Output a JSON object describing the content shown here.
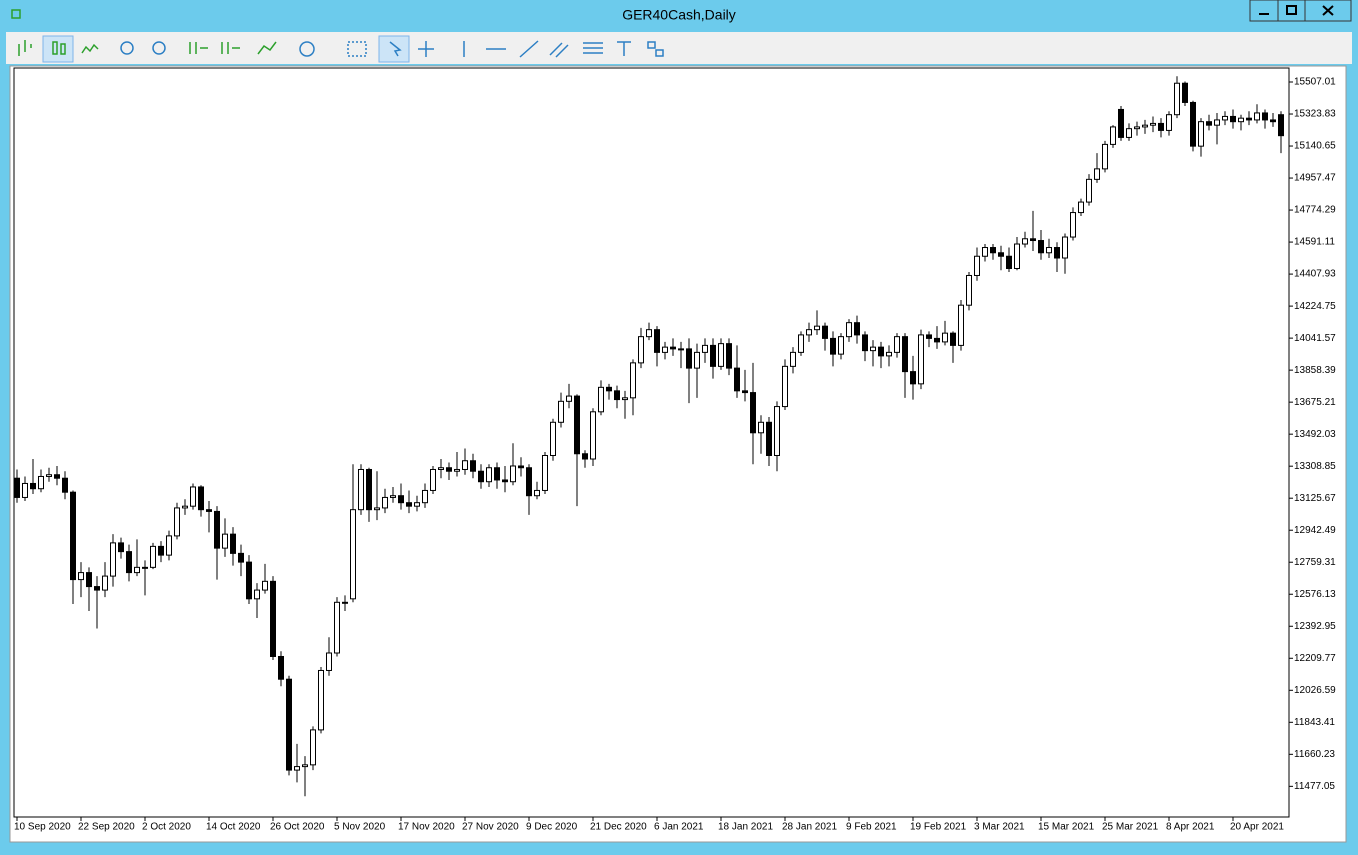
{
  "window": {
    "title": "GER40Cash,Daily"
  },
  "chart_data": {
    "type": "candlestick",
    "categories": [
      "10 Sep 2020",
      null,
      null,
      null,
      null,
      null,
      null,
      null,
      "22 Sep 2020",
      null,
      null,
      null,
      null,
      null,
      null,
      null,
      "2 Oct 2020",
      null,
      null,
      null,
      null,
      null,
      null,
      null,
      "14 Oct 2020",
      null,
      null,
      null,
      null,
      null,
      null,
      null,
      "26 Oct 2020",
      null,
      null,
      null,
      null,
      null,
      null,
      null,
      "5 Nov 2020",
      null,
      null,
      null,
      null,
      null,
      null,
      null,
      "17 Nov 2020",
      null,
      null,
      null,
      null,
      null,
      null,
      null,
      "27 Nov 2020",
      null,
      null,
      null,
      null,
      null,
      null,
      null,
      "9 Dec 2020",
      null,
      null,
      null,
      null,
      null,
      null,
      null,
      "21 Dec 2020",
      null,
      null,
      null,
      null,
      null,
      null,
      null,
      "6 Jan 2021",
      null,
      null,
      null,
      null,
      null,
      null,
      null,
      "18 Jan 2021",
      null,
      null,
      null,
      null,
      null,
      null,
      null,
      "28 Jan 2021",
      null,
      null,
      null,
      null,
      null,
      null,
      null,
      "9 Feb 2021",
      null,
      null,
      null,
      null,
      null,
      null,
      null,
      "19 Feb 2021",
      null,
      null,
      null,
      null,
      null,
      null,
      null,
      "3 Mar 2021",
      null,
      null,
      null,
      null,
      null,
      null,
      null,
      "15 Mar 2021",
      null,
      null,
      null,
      null,
      null,
      null,
      null,
      "25 Mar 2021",
      null,
      null,
      null,
      null,
      null,
      null,
      null,
      "8 Apr 2021",
      null,
      null,
      null,
      null,
      null,
      null,
      null,
      "20 Apr 2021",
      null,
      null,
      null,
      null,
      null,
      null
    ],
    "open": [
      13240,
      13130,
      13210,
      13180,
      13250,
      13260,
      13240,
      13160,
      12660,
      12700,
      12620,
      12600,
      12680,
      12870,
      12820,
      12700,
      12730,
      12730,
      12850,
      12800,
      12910,
      13070,
      13080,
      13190,
      13060,
      13050,
      12840,
      12920,
      12810,
      12760,
      12550,
      12600,
      12650,
      12220,
      12090,
      11570,
      11590,
      11600,
      11800,
      12140,
      12240,
      12530,
      12550,
      13060,
      13290,
      13060,
      13070,
      13130,
      13140,
      13100,
      13080,
      13100,
      13170,
      13290,
      13300,
      13280,
      13290,
      13340,
      13280,
      13220,
      13300,
      13230,
      13220,
      13310,
      13300,
      13140,
      13170,
      13370,
      13560,
      13680,
      13710,
      13380,
      13350,
      13620,
      13760,
      13740,
      13690,
      13700,
      13900,
      14050,
      14090,
      13960,
      13990,
      13980,
      13980,
      13870,
      13960,
      14000,
      13880,
      14010,
      13870,
      13740,
      13730,
      13500,
      13560,
      13370,
      13650,
      13880,
      13960,
      14060,
      14090,
      14110,
      14040,
      13950,
      14050,
      14130,
      14060,
      13970,
      13990,
      13940,
      13960,
      14050,
      13850,
      13780,
      14060,
      14040,
      14020,
      14070,
      14000,
      14230,
      14400,
      14510,
      14560,
      14530,
      14510,
      14440,
      14580,
      14610,
      14600,
      14530,
      14560,
      14500,
      14620,
      14760,
      14820,
      14950,
      15010,
      15150,
      15350,
      15190,
      15240,
      15250,
      15260,
      15270,
      15230,
      15320,
      15500,
      15390,
      15140,
      15280,
      15260,
      15290,
      15310,
      15280,
      15300,
      15290,
      15330,
      15290,
      15320
    ],
    "high": [
      13290,
      13250,
      13350,
      13290,
      13300,
      13310,
      13280,
      13170,
      12760,
      12730,
      12680,
      12760,
      12920,
      12900,
      12860,
      12890,
      12770,
      12870,
      12880,
      12940,
      13100,
      13120,
      13210,
      13200,
      13110,
      13080,
      13010,
      12960,
      12860,
      12800,
      12640,
      12750,
      12680,
      12250,
      12110,
      11720,
      11650,
      11820,
      12160,
      12330,
      12560,
      12570,
      13320,
      13320,
      13300,
      13280,
      13180,
      13190,
      13210,
      13170,
      13140,
      13210,
      13310,
      13350,
      13330,
      13390,
      13410,
      13380,
      13320,
      13320,
      13330,
      13310,
      13440,
      13360,
      13320,
      13220,
      13390,
      13580,
      13730,
      13780,
      13720,
      13400,
      13640,
      13800,
      13780,
      13770,
      13740,
      13920,
      14100,
      14130,
      14110,
      14020,
      14040,
      14020,
      14040,
      14010,
      14040,
      14040,
      14040,
      14040,
      14000,
      13860,
      13900,
      13600,
      13590,
      13680,
      13920,
      13990,
      14080,
      14130,
      14200,
      14130,
      14080,
      14070,
      14150,
      14170,
      14080,
      14030,
      14020,
      14000,
      14070,
      14070,
      13940,
      14090,
      14080,
      14110,
      14140,
      14080,
      14260,
      14420,
      14560,
      14580,
      14580,
      14570,
      14560,
      14620,
      14650,
      14770,
      14660,
      14610,
      14590,
      14640,
      14790,
      14840,
      14980,
      15100,
      15170,
      15260,
      15370,
      15270,
      15280,
      15290,
      15310,
      15300,
      15340,
      15540,
      15510,
      15400,
      15300,
      15320,
      15330,
      15340,
      15350,
      15320,
      15340,
      15380,
      15350,
      15330,
      15340
    ],
    "low": [
      13100,
      13110,
      13150,
      13160,
      13220,
      13200,
      13120,
      12520,
      12560,
      12480,
      12380,
      12560,
      12620,
      12780,
      12650,
      12680,
      12570,
      12720,
      12760,
      12770,
      12890,
      13030,
      13060,
      13020,
      12930,
      12660,
      12790,
      12740,
      12680,
      12520,
      12440,
      12580,
      12200,
      12050,
      11540,
      11500,
      11420,
      11570,
      11780,
      12110,
      12220,
      12480,
      12530,
      13030,
      12990,
      13000,
      13040,
      13100,
      13060,
      13040,
      13050,
      13070,
      13150,
      13240,
      13230,
      13250,
      13260,
      13240,
      13180,
      13190,
      13180,
      13160,
      13200,
      13250,
      13030,
      13120,
      13150,
      13340,
      13530,
      13640,
      13080,
      13300,
      13310,
      13600,
      13690,
      13640,
      13580,
      13600,
      13870,
      14030,
      13880,
      13920,
      13940,
      13870,
      13670,
      13700,
      13900,
      13810,
      13860,
      13830,
      13700,
      13680,
      13320,
      13380,
      13310,
      13280,
      13630,
      13840,
      13940,
      14020,
      14060,
      13970,
      13880,
      13920,
      14020,
      14010,
      13910,
      13880,
      13870,
      13880,
      13930,
      13700,
      13690,
      13750,
      13990,
      13980,
      14000,
      13900,
      13970,
      14200,
      14370,
      14480,
      14490,
      14430,
      14420,
      14430,
      14560,
      14540,
      14490,
      14500,
      14420,
      14410,
      14600,
      14740,
      14800,
      14930,
      14990,
      15130,
      15170,
      15170,
      15200,
      15210,
      15220,
      15190,
      15200,
      15300,
      15370,
      15110,
      15080,
      15230,
      15150,
      15260,
      15240,
      15230,
      15260,
      15270,
      15240,
      15250,
      15100
    ],
    "close": [
      13130,
      13210,
      13180,
      13250,
      13260,
      13240,
      13160,
      12660,
      12700,
      12620,
      12600,
      12680,
      12870,
      12820,
      12700,
      12730,
      12730,
      12850,
      12800,
      12910,
      13070,
      13080,
      13190,
      13060,
      13050,
      12840,
      12920,
      12810,
      12760,
      12550,
      12600,
      12650,
      12220,
      12090,
      11570,
      11590,
      11600,
      11800,
      12140,
      12240,
      12530,
      12530,
      13060,
      13290,
      13060,
      13070,
      13130,
      13140,
      13100,
      13080,
      13100,
      13170,
      13290,
      13300,
      13280,
      13290,
      13340,
      13280,
      13220,
      13300,
      13230,
      13220,
      13310,
      13300,
      13140,
      13170,
      13370,
      13560,
      13680,
      13710,
      13380,
      13350,
      13620,
      13760,
      13740,
      13690,
      13700,
      13900,
      14050,
      14090,
      13960,
      13990,
      13980,
      13980,
      13870,
      13960,
      14000,
      13880,
      14010,
      13870,
      13740,
      13730,
      13500,
      13560,
      13370,
      13650,
      13880,
      13960,
      14060,
      14090,
      14110,
      14040,
      13950,
      14050,
      14130,
      14060,
      13970,
      13990,
      13940,
      13960,
      14050,
      13850,
      13780,
      14060,
      14040,
      14020,
      14070,
      14000,
      14230,
      14400,
      14510,
      14560,
      14530,
      14510,
      14440,
      14580,
      14610,
      14600,
      14530,
      14560,
      14500,
      14620,
      14760,
      14820,
      14950,
      15010,
      15150,
      15250,
      15190,
      15240,
      15250,
      15260,
      15270,
      15230,
      15320,
      15500,
      15390,
      15140,
      15280,
      15260,
      15290,
      15310,
      15280,
      15300,
      15290,
      15330,
      15290,
      15280,
      15200
    ],
    "up_color": "#ffffff",
    "down_color": "#000000",
    "line_color": "#000000",
    "ylim": [
      11301.6,
      15587.15
    ],
    "yticks": [
      11477.05,
      11660.23,
      11843.41,
      12026.59,
      12209.77,
      12392.95,
      12576.13,
      12759.31,
      12942.49,
      13125.67,
      13308.85,
      13492.03,
      13675.21,
      13858.39,
      14041.57,
      14224.75,
      14407.93,
      14591.11,
      14774.29,
      14957.47,
      15140.65,
      15323.83,
      15507.01
    ]
  }
}
